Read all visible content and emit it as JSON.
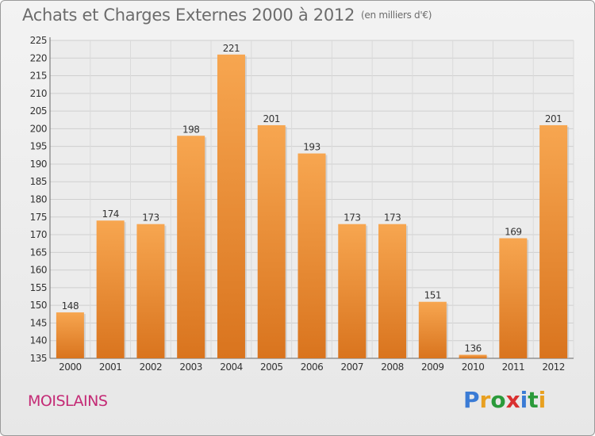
{
  "title": "Achats et Charges Externes 2000 à 2012",
  "unit": "(en milliers d'€)",
  "town": "MOISLAINS",
  "logo": {
    "text": "Proxiti",
    "colors": [
      "#3a7bd5",
      "#e8a020",
      "#2a9a3a",
      "#d93030",
      "#3a7bd5",
      "#2a9a3a",
      "#e8a020"
    ]
  },
  "chart_data": {
    "type": "bar",
    "categories": [
      "2000",
      "2001",
      "2002",
      "2003",
      "2004",
      "2005",
      "2006",
      "2007",
      "2008",
      "2009",
      "2010",
      "2011",
      "2012"
    ],
    "values": [
      148,
      174,
      173,
      198,
      221,
      201,
      193,
      173,
      173,
      151,
      136,
      169,
      201
    ],
    "yticks": [
      135,
      140,
      145,
      150,
      155,
      160,
      165,
      170,
      175,
      180,
      185,
      190,
      195,
      200,
      205,
      210,
      215,
      220,
      225
    ],
    "ylim": [
      135,
      225
    ],
    "grid": true,
    "bar_color": "#f0922e"
  }
}
